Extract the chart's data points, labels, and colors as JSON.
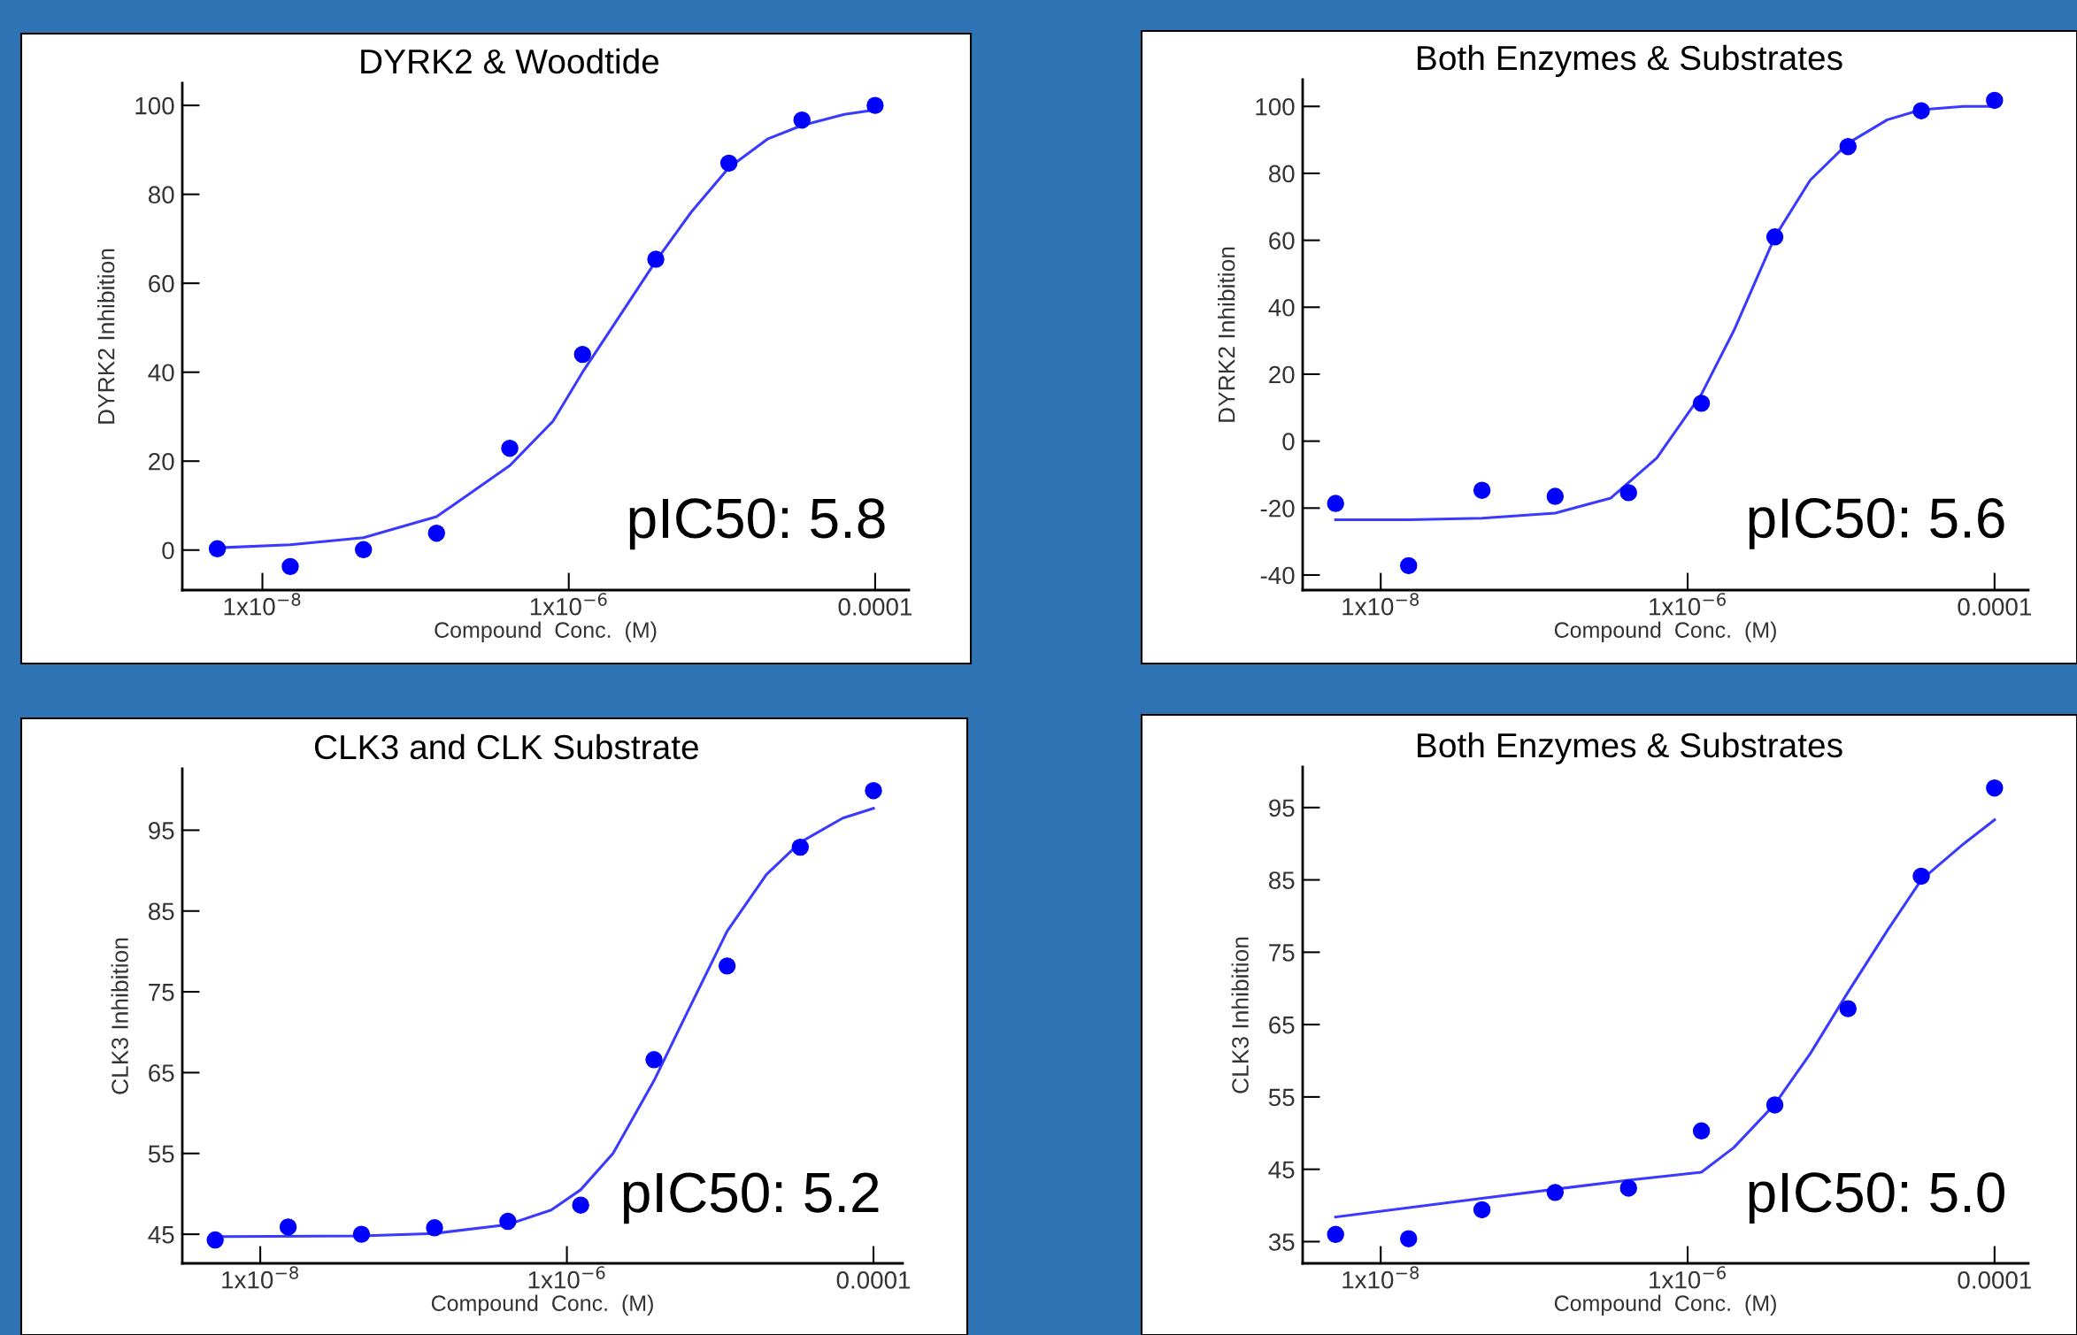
{
  "chart_data": [
    {
      "type": "scatter",
      "title": "DYRK2 & Woodtide",
      "xlabel": "Compound  Conc.  (M)",
      "ylabel": "DYRK2 Inhibition",
      "log": "x",
      "xlim": [
        3e-09,
        0.000166
      ],
      "xticks": [
        {
          "value": 1e-08,
          "label": "1x10$^{−8}$"
        },
        {
          "value": 1e-06,
          "label": "1x10$^{−6}$"
        },
        {
          "value": 0.0001,
          "label": "0.0001"
        }
      ],
      "ylim": [
        -9,
        105
      ],
      "yticks": [
        0,
        20,
        40,
        60,
        80,
        100
      ],
      "series": [
        {
          "marker": "circle",
          "color": "#0000ff",
          "x": [
            5.08e-09,
            1.52e-08,
            4.57e-08,
            1.37e-07,
            4.12e-07,
            1.23e-06,
            3.7e-06,
            1.11e-05,
            3.33e-05,
            0.0001
          ],
          "values": [
            0.3,
            -3.7,
            0.1,
            3.8,
            22.9,
            44.0,
            65.4,
            87.0,
            96.7,
            100
          ]
        },
        {
          "type": "line",
          "color": "#3a3aff",
          "x": [
            5.08e-09,
            1.52e-08,
            4.57e-08,
            1.37e-07,
            4.12e-07,
            7.9e-07,
            1.23e-06,
            2e-06,
            3.7e-06,
            6.3e-06,
            1.11e-05,
            2e-05,
            3.33e-05,
            6.3e-05,
            0.0001
          ],
          "values": [
            0.5,
            1.2,
            2.8,
            7.5,
            19,
            29,
            40,
            51,
            65,
            76,
            86,
            92.5,
            95.5,
            98,
            99
          ]
        }
      ],
      "annotations": [
        "pIC50: 5.8"
      ]
    },
    {
      "type": "scatter",
      "title": "Both Enzymes & Substrates",
      "xlabel": "Compound  Conc.  (M)",
      "ylabel": "DYRK2 Inhibition",
      "log": "x",
      "xlim": [
        3.1e-09,
        0.000166
      ],
      "xticks": [
        {
          "value": 1e-08,
          "label": "1x10$^{−8}$"
        },
        {
          "value": 1e-06,
          "label": "1x10$^{−6}$"
        },
        {
          "value": 0.0001,
          "label": "0.0001"
        }
      ],
      "ylim": [
        -44.5,
        108
      ],
      "yticks": [
        -40,
        -20,
        0,
        20,
        40,
        60,
        80,
        100
      ],
      "series": [
        {
          "marker": "circle",
          "color": "#0000ff",
          "x": [
            5.08e-09,
            1.52e-08,
            4.57e-08,
            1.37e-07,
            4.12e-07,
            1.23e-06,
            3.7e-06,
            1.11e-05,
            3.33e-05,
            0.0001
          ],
          "values": [
            -18.6,
            -37.2,
            -14.7,
            -16.5,
            -15.4,
            11.3,
            61.0,
            88.0,
            98.7,
            101.8
          ]
        },
        {
          "type": "line",
          "color": "#3a3aff",
          "x": [
            5.08e-09,
            1.52e-08,
            4.57e-08,
            1.37e-07,
            3.16e-07,
            6.3e-07,
            1.23e-06,
            2e-06,
            3.7e-06,
            6.3e-06,
            1.11e-05,
            2e-05,
            3.33e-05,
            6.3e-05,
            0.0001
          ],
          "values": [
            -23.5,
            -23.5,
            -23,
            -21.5,
            -17,
            -5,
            14,
            33,
            61,
            78,
            89,
            96,
            99,
            100,
            100
          ]
        }
      ],
      "annotations": [
        "pIC50: 5.6"
      ]
    },
    {
      "type": "scatter",
      "title": "CLK3 and CLK Substrate",
      "xlabel": "Compound  Conc.  (M)",
      "ylabel": "CLK3 Inhibition",
      "log": "x",
      "xlim": [
        3.1e-09,
        0.000155
      ],
      "xticks": [
        {
          "value": 1e-08,
          "label": "1x10$^{−8}$"
        },
        {
          "value": 1e-06,
          "label": "1x10$^{−6}$"
        },
        {
          "value": 0.0001,
          "label": "0.0001"
        }
      ],
      "ylim": [
        41.4,
        102.6
      ],
      "yticks": [
        45,
        55,
        65,
        75,
        85,
        95
      ],
      "series": [
        {
          "marker": "circle",
          "color": "#0000ff",
          "x": [
            5.08e-09,
            1.52e-08,
            4.57e-08,
            1.37e-07,
            4.12e-07,
            1.23e-06,
            3.7e-06,
            1.11e-05,
            3.33e-05,
            0.0001
          ],
          "values": [
            44.3,
            45.9,
            45.0,
            45.8,
            46.6,
            48.6,
            66.6,
            78.2,
            92.9,
            99.9
          ]
        },
        {
          "type": "line",
          "color": "#3a3aff",
          "x": [
            5.08e-09,
            4.57e-08,
            1.37e-07,
            4.12e-07,
            7.9e-07,
            1.23e-06,
            2e-06,
            3.7e-06,
            6.3e-06,
            1.11e-05,
            2e-05,
            3.33e-05,
            6.3e-05,
            0.0001
          ],
          "values": [
            44.7,
            44.8,
            45.1,
            46.2,
            48,
            50.5,
            55,
            64,
            73,
            82.5,
            89.5,
            93.5,
            96.5,
            97.7
          ]
        }
      ],
      "annotations": [
        "pIC50: 5.2"
      ]
    },
    {
      "type": "scatter",
      "title": "Both Enzymes & Substrates",
      "xlabel": "Compound  Conc.  (M)",
      "ylabel": "CLK3 Inhibition",
      "log": "x",
      "xlim": [
        3.1e-09,
        0.000166
      ],
      "xticks": [
        {
          "value": 1e-08,
          "label": "1x10$^{−8}$"
        },
        {
          "value": 1e-06,
          "label": "1x10$^{−6}$"
        },
        {
          "value": 0.0001,
          "label": "0.0001"
        }
      ],
      "ylim": [
        32.0,
        100.6
      ],
      "yticks": [
        35,
        45,
        55,
        65,
        75,
        85,
        95
      ],
      "series": [
        {
          "marker": "circle",
          "color": "#0000ff",
          "x": [
            5.08e-09,
            1.52e-08,
            4.57e-08,
            1.37e-07,
            4.12e-07,
            1.23e-06,
            3.7e-06,
            1.11e-05,
            3.33e-05,
            0.0001
          ],
          "values": [
            36.0,
            35.4,
            39.4,
            41.8,
            42.4,
            50.3,
            53.9,
            67.2,
            85.5,
            97.7
          ]
        },
        {
          "type": "line",
          "color": "#3a3aff",
          "x": [
            5.08e-09,
            4.57e-08,
            4.12e-07,
            1.23e-06,
            2e-06,
            3.7e-06,
            6.3e-06,
            1.11e-05,
            2e-05,
            3.33e-05,
            6.3e-05,
            0.0001
          ],
          "values": [
            38.4,
            41,
            43.5,
            44.6,
            48,
            54,
            61,
            69.5,
            78,
            85,
            90,
            93.3
          ]
        }
      ],
      "annotations": [
        "pIC50: 5.0"
      ]
    }
  ]
}
